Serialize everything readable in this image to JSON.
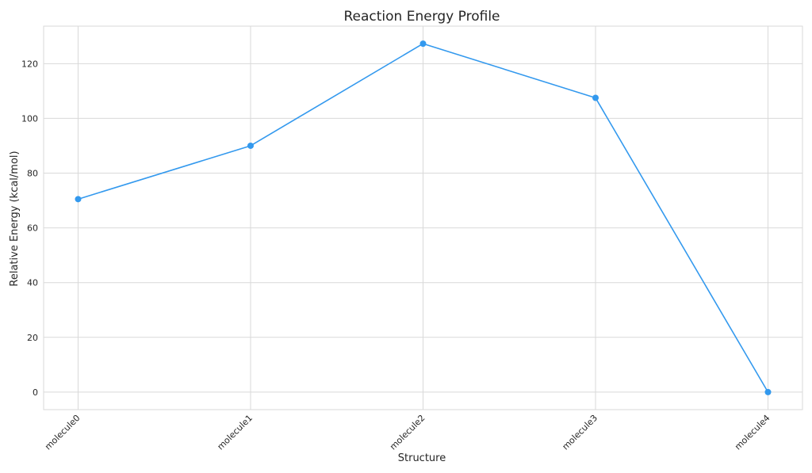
{
  "chart_data": {
    "type": "line",
    "title": "Reaction Energy Profile",
    "xlabel": "Structure",
    "ylabel": "Relative Energy (kcal/mol)",
    "categories": [
      "molecule0",
      "molecule1",
      "molecule2",
      "molecule3",
      "molecule4"
    ],
    "series": [
      {
        "values": [
          70.5,
          90.0,
          127.3,
          107.5,
          0.0
        ],
        "color": "#3399ee"
      }
    ],
    "yticks": [
      0,
      20,
      40,
      60,
      80,
      100,
      120
    ],
    "ylim": [
      -6.4,
      133.7
    ],
    "grid": true,
    "marker": "circle",
    "style": "whitegrid"
  }
}
